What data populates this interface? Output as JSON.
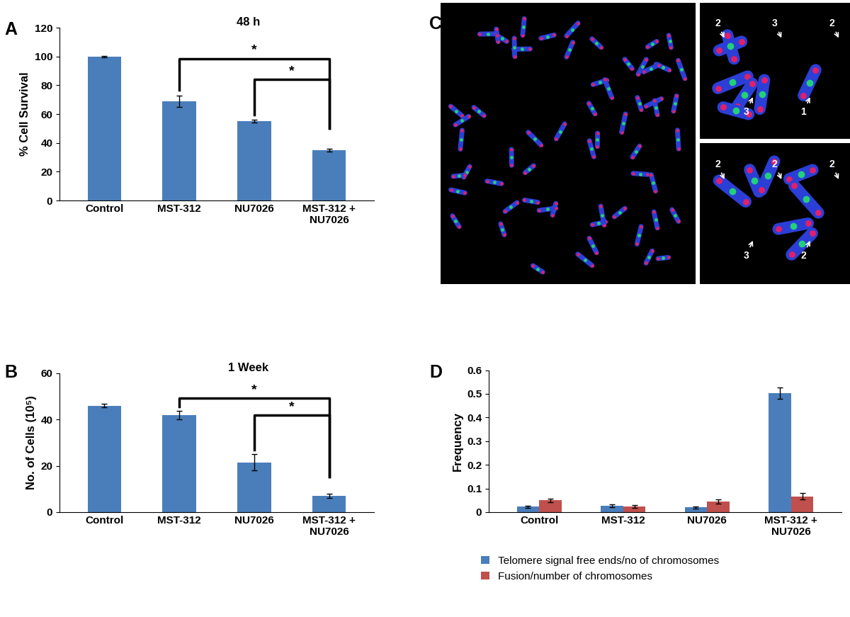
{
  "chart_data": [
    {
      "panel": "A",
      "type": "bar",
      "title": "48 h",
      "y_label": "% Cell Survival",
      "categories": [
        "Control",
        "MST-312",
        "NU7026",
        "MST-312 +\nNU7026"
      ],
      "values": [
        100,
        69,
        55,
        35
      ],
      "errors": [
        0.5,
        4,
        1,
        1
      ],
      "color": "#4a7ebb",
      "ylim": [
        0,
        120
      ],
      "yticks": [
        0,
        20,
        40,
        60,
        80,
        100,
        120
      ],
      "significance": [
        {
          "pair": [
            1,
            3
          ],
          "label": "*"
        },
        {
          "pair": [
            2,
            3
          ],
          "label": "*"
        }
      ]
    },
    {
      "panel": "B",
      "type": "bar",
      "title": "1 Week",
      "y_label": "No. of Cells (10⁵)",
      "categories": [
        "Control",
        "MST-312",
        "NU7026",
        "MST-312 +\nNU7026"
      ],
      "values": [
        46,
        42,
        21.5,
        7
      ],
      "errors": [
        0.7,
        1.8,
        3.5,
        1
      ],
      "color": "#4a7ebb",
      "ylim": [
        0,
        60
      ],
      "yticks": [
        0,
        20,
        40,
        60
      ],
      "significance": [
        {
          "pair": [
            1,
            3
          ],
          "label": "*"
        },
        {
          "pair": [
            2,
            3
          ],
          "label": "*"
        }
      ]
    },
    {
      "panel": "D",
      "type": "bar",
      "y_label": "Frequency",
      "categories": [
        "Control",
        "MST-312",
        "NU7026",
        "MST-312 +\nNU7026"
      ],
      "series": [
        {
          "name": "Telomere signal free ends/no of chromosomes",
          "color": "#4a7ebb",
          "values": [
            0.023,
            0.027,
            0.02,
            0.503
          ],
          "errors": [
            0.005,
            0.005,
            0.005,
            0.025
          ]
        },
        {
          "name": "Fusion/number of chromosomes",
          "color": "#c0504d",
          "values": [
            0.05,
            0.023,
            0.045,
            0.067
          ],
          "errors": [
            0.008,
            0.006,
            0.008,
            0.013
          ]
        }
      ],
      "ylim": [
        0,
        0.6
      ],
      "yticks": [
        0,
        0.1,
        0.2,
        0.3,
        0.4,
        0.5,
        0.6
      ],
      "legend": "upper left"
    }
  ],
  "image_panel": {
    "panel": "C",
    "upper_annotations": [
      "2",
      "3",
      "3",
      "1",
      "2"
    ],
    "lower_annotations": [
      "2",
      "3",
      "2",
      "2",
      "2"
    ]
  }
}
